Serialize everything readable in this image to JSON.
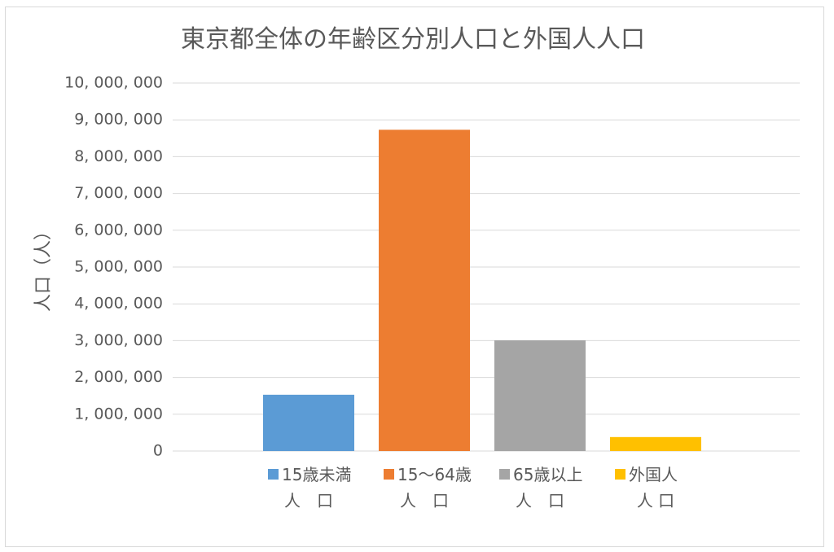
{
  "chart_data": {
    "type": "bar",
    "title": "東京都全体の年齢区分別人口と外国人人口",
    "ylabel": "人口（人）",
    "ylim": [
      0,
      10000000
    ],
    "ytick_step": 1000000,
    "ytick_labels": [
      "0",
      "1, 000, 000",
      "2, 000, 000",
      "3, 000, 000",
      "4, 000, 000",
      "5, 000, 000",
      "6, 000, 000",
      "7, 000, 000",
      "8, 000, 000",
      "9, 000, 000",
      "10, 000, 000"
    ],
    "grid": true,
    "categories": [
      {
        "line1": "15歳未満",
        "line2": "人　口"
      },
      {
        "line1": "15～64歳",
        "line2": "人　口"
      },
      {
        "line1": "65歳以上",
        "line2": "人　口"
      },
      {
        "line1": "外国人",
        "line2": "人 口"
      }
    ],
    "values": [
      1530000,
      8730000,
      3010000,
      380000
    ],
    "colors": [
      "#5b9bd5",
      "#ed7d31",
      "#a5a5a5",
      "#ffc000"
    ]
  }
}
